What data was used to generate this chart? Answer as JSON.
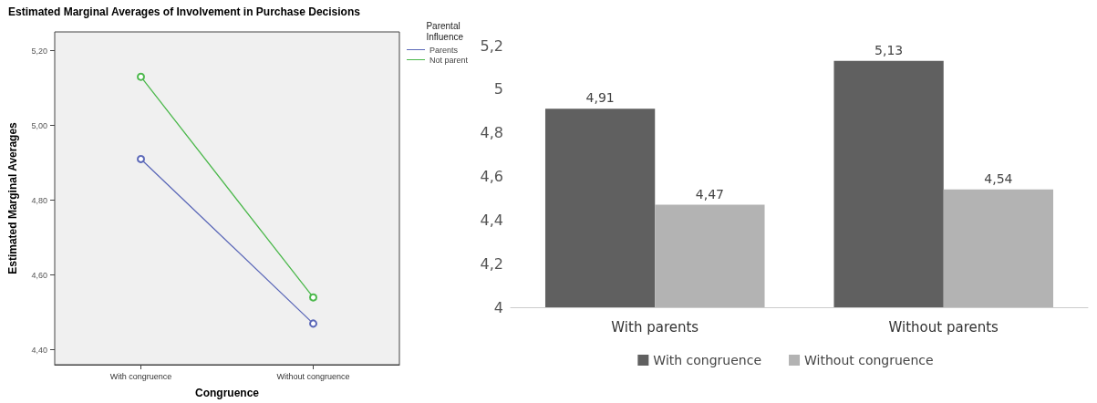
{
  "chart_data": [
    {
      "type": "line",
      "title": "Estimated Marginal Averages of Involvement in Purchase Decisions",
      "xlabel": "Congruence",
      "ylabel": "Estimated Marginal Averages",
      "legend_title": "Parental Influence",
      "categories": [
        "With congruence",
        "Without congruence"
      ],
      "series": [
        {
          "name": "Parents",
          "color": "#5b68b8",
          "values": [
            4.91,
            4.47
          ]
        },
        {
          "name": "Not parent",
          "color": "#4cb84c",
          "values": [
            5.13,
            4.54
          ]
        }
      ],
      "ylim": [
        4.36,
        5.25
      ],
      "yticks": [
        {
          "value": 4.4,
          "label": "4,40"
        },
        {
          "value": 4.6,
          "label": "4,60"
        },
        {
          "value": 4.8,
          "label": "4,80"
        },
        {
          "value": 5.0,
          "label": "5,00"
        },
        {
          "value": 5.2,
          "label": "5,20"
        }
      ],
      "marker": "circle",
      "legend": "top right"
    },
    {
      "type": "bar",
      "categories": [
        "With parents",
        "Without parents"
      ],
      "series": [
        {
          "name": "With congruence",
          "color": "#606060",
          "values": [
            4.91,
            5.13
          ],
          "value_labels": [
            "4,91",
            "5,13"
          ]
        },
        {
          "name": "Without congruence",
          "color": "#b3b3b3",
          "values": [
            4.47,
            4.54
          ],
          "value_labels": [
            "4,47",
            "4,54"
          ]
        }
      ],
      "ylim": [
        4,
        5.2
      ],
      "yticks": [
        4,
        {
          "value": 4.2,
          "label": "4,2"
        },
        {
          "value": 4.4,
          "label": "4,4"
        },
        {
          "value": 4.6,
          "label": "4,6"
        },
        {
          "value": 4.8,
          "label": "4,8"
        },
        5,
        {
          "value": 5.2,
          "label": "5,2"
        }
      ],
      "legend": "bottom"
    }
  ]
}
